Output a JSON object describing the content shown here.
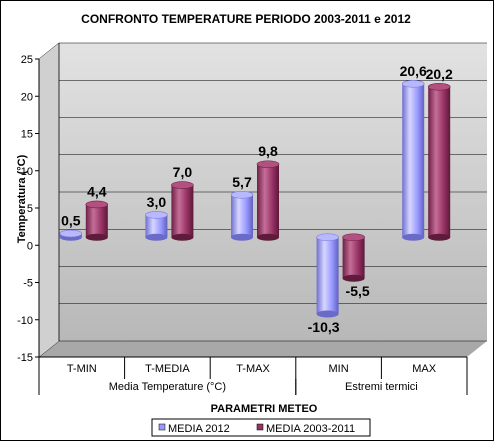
{
  "chart_data": {
    "type": "bar",
    "style": "3d-cylinder",
    "title": "CONFRONTO TEMPERATURE PERIODO 2003-2011  e 2012",
    "xlabel": "PARAMETRI METEO",
    "ylabel": "Temperatura (°C)",
    "ylim": [
      -15,
      25
    ],
    "yticks": [
      "25",
      "20",
      "15",
      "10",
      "5",
      "0",
      "-5",
      "-10",
      "-15"
    ],
    "categories": [
      "T-MIN",
      "T-MEDIA",
      "T-MAX",
      "MIN",
      "MAX"
    ],
    "groups": [
      {
        "label": "Media Temperature (°C)",
        "span": 3
      },
      {
        "label": "Estremi termici",
        "span": 2
      }
    ],
    "series": [
      {
        "name": "MEDIA 2012",
        "color": "#9999ff",
        "values": [
          0.5,
          3.0,
          5.7,
          -10.3,
          20.6
        ],
        "labels": [
          "0,5",
          "3,0",
          "5,7",
          "-10,3",
          "20,6"
        ]
      },
      {
        "name": "MEDIA 2003-2011",
        "color": "#993366",
        "values": [
          4.4,
          7.0,
          9.8,
          -5.5,
          20.2
        ],
        "labels": [
          "4,4",
          "7,0",
          "9,8",
          "-5,5",
          "20,2"
        ]
      }
    ],
    "legend_position": "bottom",
    "grid": true,
    "plot_background": "#c0c0c0"
  }
}
